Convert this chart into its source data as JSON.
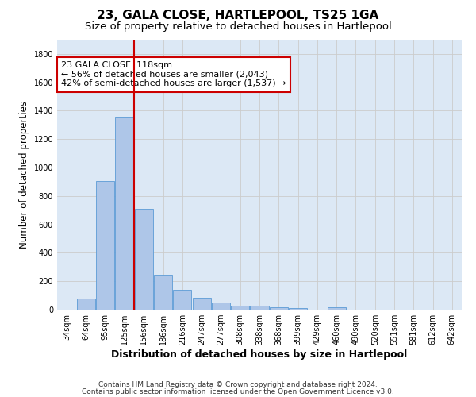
{
  "title": "23, GALA CLOSE, HARTLEPOOL, TS25 1GA",
  "subtitle": "Size of property relative to detached houses in Hartlepool",
  "xlabel": "Distribution of detached houses by size in Hartlepool",
  "ylabel": "Number of detached properties",
  "bar_color": "#aec6e8",
  "bar_edge_color": "#5b9bd5",
  "background_color": "#ffffff",
  "grid_color": "#cccccc",
  "annotation_box_color": "#cc0000",
  "vline_color": "#cc0000",
  "categories": [
    "34sqm",
    "64sqm",
    "95sqm",
    "125sqm",
    "156sqm",
    "186sqm",
    "216sqm",
    "247sqm",
    "277sqm",
    "308sqm",
    "338sqm",
    "368sqm",
    "399sqm",
    "429sqm",
    "460sqm",
    "490sqm",
    "520sqm",
    "551sqm",
    "581sqm",
    "612sqm",
    "642sqm"
  ],
  "values": [
    0,
    80,
    905,
    1360,
    710,
    248,
    140,
    85,
    50,
    30,
    28,
    17,
    12,
    0,
    17,
    0,
    0,
    0,
    0,
    0,
    0
  ],
  "ylim": [
    0,
    1900
  ],
  "yticks": [
    0,
    200,
    400,
    600,
    800,
    1000,
    1200,
    1400,
    1600,
    1800
  ],
  "vline_position": 3.5,
  "annotation_text": "23 GALA CLOSE: 118sqm\n← 56% of detached houses are smaller (2,043)\n42% of semi-detached houses are larger (1,537) →",
  "footnote1": "Contains HM Land Registry data © Crown copyright and database right 2024.",
  "footnote2": "Contains public sector information licensed under the Open Government Licence v3.0.",
  "title_fontsize": 11,
  "subtitle_fontsize": 9.5,
  "xlabel_fontsize": 9,
  "ylabel_fontsize": 8.5,
  "annotation_fontsize": 8,
  "tick_fontsize": 7,
  "footnote_fontsize": 6.5
}
